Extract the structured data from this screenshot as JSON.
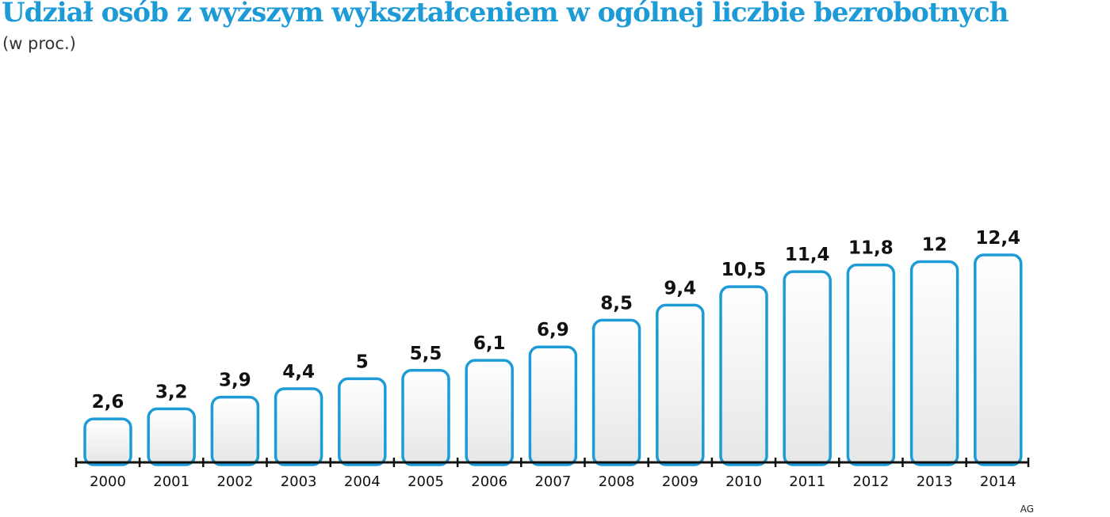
{
  "chart_data": {
    "type": "bar",
    "title": "Udział osób z wyższym wykształceniem w ogólnej liczbie bezrobotnych",
    "subtitle": "(w proc.)",
    "categories": [
      "2000",
      "2001",
      "2002",
      "2003",
      "2004",
      "2005",
      "2006",
      "2007",
      "2008",
      "2009",
      "2010",
      "2011",
      "2012",
      "2013",
      "2014"
    ],
    "values": [
      2.6,
      3.2,
      3.9,
      4.4,
      5,
      5.5,
      6.1,
      6.9,
      8.5,
      9.4,
      10.5,
      11.4,
      11.8,
      12,
      12.4
    ],
    "value_labels": [
      "2,6",
      "3,2",
      "3,9",
      "4,4",
      "5",
      "5,5",
      "6,1",
      "6,9",
      "8,5",
      "9,4",
      "10,5",
      "11,4",
      "11,8",
      "12",
      "12,4"
    ],
    "ylim": [
      0,
      12.4
    ],
    "grid": false,
    "legend": "none",
    "bar_stroke_color": "#1d9bd7",
    "title_color": "#1d9bd7",
    "axis_color": "#111111"
  },
  "credit": "AG"
}
